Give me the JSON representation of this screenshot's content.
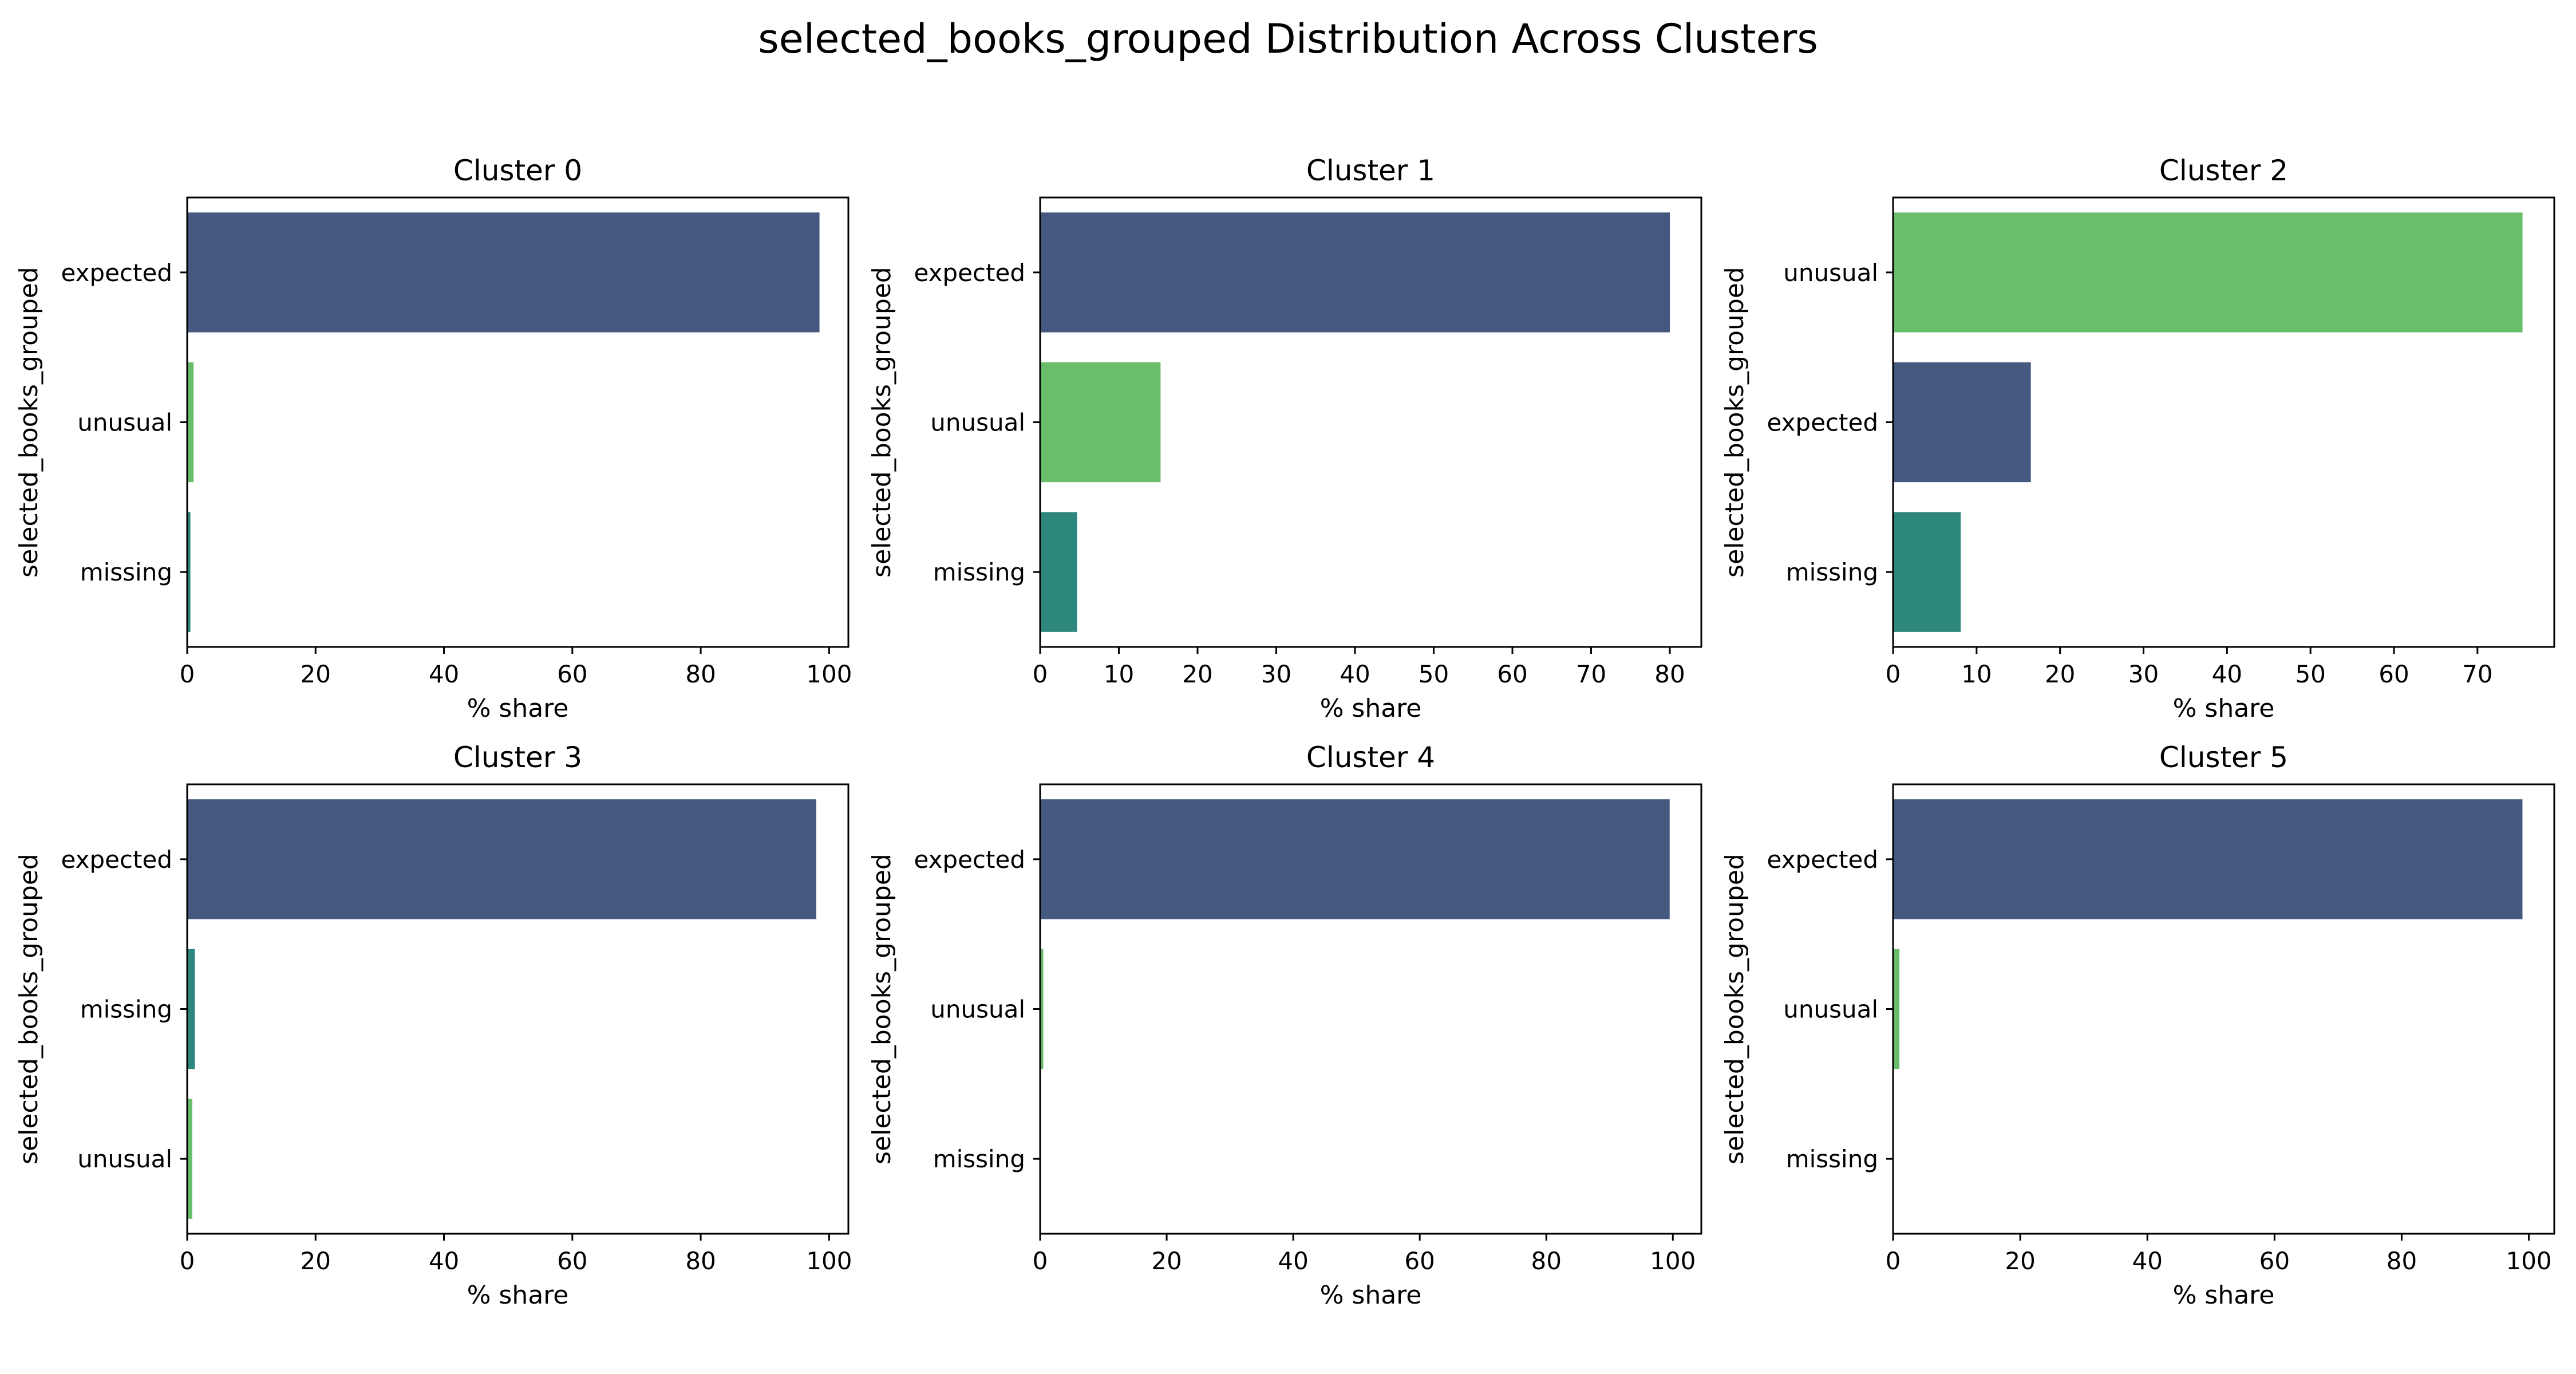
{
  "figure": {
    "title": "selected_books_grouped Distribution Across Clusters"
  },
  "colors": {
    "expected": "#45587f",
    "unusual": "#6abd6b",
    "missing": "#2e877d"
  },
  "chart_data": [
    {
      "type": "bar",
      "orientation": "horizontal",
      "title": "Cluster 0",
      "xlabel": "% share",
      "ylabel": "selected_books_grouped",
      "categories": [
        "expected",
        "unusual",
        "missing"
      ],
      "values": [
        98.5,
        1.0,
        0.5
      ],
      "xlim": [
        0,
        103
      ],
      "xticks": [
        0,
        20,
        40,
        60,
        80,
        100
      ]
    },
    {
      "type": "bar",
      "orientation": "horizontal",
      "title": "Cluster 1",
      "xlabel": "% share",
      "ylabel": "selected_books_grouped",
      "categories": [
        "expected",
        "unusual",
        "missing"
      ],
      "values": [
        80.0,
        15.3,
        4.7
      ],
      "xlim": [
        0,
        84
      ],
      "xticks": [
        0,
        10,
        20,
        30,
        40,
        50,
        60,
        70,
        80
      ]
    },
    {
      "type": "bar",
      "orientation": "horizontal",
      "title": "Cluster 2",
      "xlabel": "% share",
      "ylabel": "selected_books_grouped",
      "categories": [
        "unusual",
        "expected",
        "missing"
      ],
      "values": [
        75.4,
        16.5,
        8.1
      ],
      "xlim": [
        0,
        79.2
      ],
      "xticks": [
        0,
        10,
        20,
        30,
        40,
        50,
        60,
        70
      ]
    },
    {
      "type": "bar",
      "orientation": "horizontal",
      "title": "Cluster 3",
      "xlabel": "% share",
      "ylabel": "selected_books_grouped",
      "categories": [
        "expected",
        "missing",
        "unusual"
      ],
      "values": [
        98.0,
        1.2,
        0.8
      ],
      "xlim": [
        0,
        103
      ],
      "xticks": [
        0,
        20,
        40,
        60,
        80,
        100
      ]
    },
    {
      "type": "bar",
      "orientation": "horizontal",
      "title": "Cluster 4",
      "xlabel": "% share",
      "ylabel": "selected_books_grouped",
      "categories": [
        "expected",
        "unusual",
        "missing"
      ],
      "values": [
        99.5,
        0.5,
        0.0
      ],
      "xlim": [
        0,
        104.5
      ],
      "xticks": [
        0,
        20,
        40,
        60,
        80,
        100
      ]
    },
    {
      "type": "bar",
      "orientation": "horizontal",
      "title": "Cluster 5",
      "xlabel": "% share",
      "ylabel": "selected_books_grouped",
      "categories": [
        "expected",
        "unusual",
        "missing"
      ],
      "values": [
        99.0,
        1.0,
        0.0
      ],
      "xlim": [
        0,
        104
      ],
      "xticks": [
        0,
        20,
        40,
        60,
        80,
        100
      ]
    }
  ]
}
